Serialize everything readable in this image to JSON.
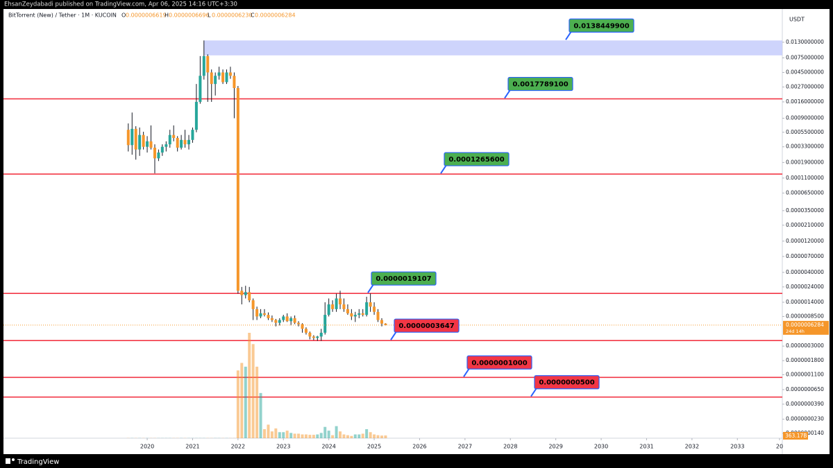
{
  "publisher": "EhsanZeydabadi published on TradingView.com, Apr 06, 2025 14:16 UTC+3:30",
  "footer": "TradingView",
  "chart_data": {
    "type": "candlestick",
    "symbol": "BitTorrent (New) / Tether · 1M · KUCOIN",
    "ohlc": [
      {
        "key": "O",
        "value": "0.0000006619"
      },
      {
        "key": "H",
        "value": "0.0000006696"
      },
      {
        "key": "L",
        "value": "0.0000006230"
      },
      {
        "key": "C",
        "value": "0.0000006284"
      }
    ],
    "y_unit": "USDT",
    "log_scale": true,
    "up_color": "#26a69a",
    "down_color": "#f5962a",
    "ylim": [
      1.18e-08,
      0.037
    ],
    "yticks": [
      {
        "value": 0.013,
        "label": "0.0130000000"
      },
      {
        "value": 0.0075,
        "label": "0.0075000000"
      },
      {
        "value": 0.0045,
        "label": "0.0045000000"
      },
      {
        "value": 0.0027,
        "label": "0.0027000000"
      },
      {
        "value": 0.0016,
        "label": "0.0016000000"
      },
      {
        "value": 0.0009,
        "label": "0.0009000000"
      },
      {
        "value": 0.00055,
        "label": "0.0005500000"
      },
      {
        "value": 0.00033,
        "label": "0.0003300000"
      },
      {
        "value": 0.00019,
        "label": "0.0001900000"
      },
      {
        "value": 0.00011,
        "label": "0.0001100000"
      },
      {
        "value": 6.5e-05,
        "label": "0.0000650000"
      },
      {
        "value": 3.5e-05,
        "label": "0.0000350000"
      },
      {
        "value": 2.1e-05,
        "label": "0.0000210000"
      },
      {
        "value": 1.2e-05,
        "label": "0.0000120000"
      },
      {
        "value": 7e-06,
        "label": "0.0000070000"
      },
      {
        "value": 4e-06,
        "label": "0.0000040000"
      },
      {
        "value": 2.4e-06,
        "label": "0.0000024000"
      },
      {
        "value": 1.4e-06,
        "label": "0.0000014000"
      },
      {
        "value": 8.5e-07,
        "label": "0.0000008500"
      },
      {
        "value": 3e-07,
        "label": "0.0000003000"
      },
      {
        "value": 1.8e-07,
        "label": "0.0000001800"
      },
      {
        "value": 1.1e-07,
        "label": "0.0000001100"
      },
      {
        "value": 6.5e-08,
        "label": "0.0000000650"
      },
      {
        "value": 3.9e-08,
        "label": "0.0000000390"
      },
      {
        "value": 2.3e-08,
        "label": "0.0000000230"
      },
      {
        "value": 1.4e-08,
        "label": "0.0000000140"
      }
    ],
    "xlim": [
      2016.834,
      2033.99
    ],
    "xticks": [
      2020,
      2021,
      2022,
      2023,
      2024,
      2025,
      2026,
      2027,
      2028,
      2029,
      2030,
      2031,
      2032,
      2033,
      {
        "value": 2034,
        "label": "20"
      }
    ],
    "zone": {
      "low": 0.0082,
      "high": 0.01384499,
      "color": "#c5cdfc"
    },
    "levels": [
      {
        "value": 0.01384499,
        "label": "0.0138449900",
        "color": "#4caf50",
        "line": false
      },
      {
        "value": 0.00177891,
        "label": "0.0017789100",
        "color": "#4caf50",
        "line": true
      },
      {
        "value": 0.00012656,
        "label": "0.0001265600",
        "color": "#4caf50",
        "line": true
      },
      {
        "value": 1.9107e-06,
        "label": "0.0000019107",
        "color": "#4caf50",
        "line": true
      },
      {
        "value": 3.647e-07,
        "label": "0.0000003647",
        "color": "#f23645",
        "line": true
      },
      {
        "value": 1e-07,
        "label": "0.0000001000",
        "color": "#f23645",
        "line": true
      },
      {
        "value": 5e-08,
        "label": "0.0000000500",
        "color": "#f23645",
        "line": true
      }
    ],
    "level_line_color": "#f23645",
    "last_price": {
      "value": 6.284e-07,
      "label": "0.0000006284",
      "countdown": "24d 14h"
    },
    "last_volume_label": "363.17B",
    "candles": {
      "x": [
        2019.583,
        2019.667,
        2019.75,
        2019.833,
        2019.917,
        2020.0,
        2020.083,
        2020.167,
        2020.25,
        2020.333,
        2020.417,
        2020.5,
        2020.583,
        2020.667,
        2020.75,
        2020.833,
        2020.917,
        2021.0,
        2021.083,
        2021.167,
        2021.25,
        2021.333,
        2021.417,
        2021.5,
        2021.583,
        2021.667,
        2021.75,
        2021.833,
        2021.917,
        2022.0,
        2022.083,
        2022.167,
        2022.25,
        2022.333,
        2022.417,
        2022.5,
        2022.583,
        2022.667,
        2022.75,
        2022.833,
        2022.917,
        2023.0,
        2023.083,
        2023.167,
        2023.25,
        2023.333,
        2023.417,
        2023.5,
        2023.583,
        2023.667,
        2023.75,
        2023.833,
        2023.917,
        2024.0,
        2024.083,
        2024.167,
        2024.25,
        2024.333,
        2024.417,
        2024.5,
        2024.583,
        2024.667,
        2024.75,
        2024.833,
        2024.917,
        2025.0,
        2025.083,
        2025.167,
        2025.25
      ],
      "open": [
        0.0006,
        0.00035,
        0.00062,
        0.0003,
        0.0005,
        0.00033,
        0.0004,
        0.00032,
        0.00022,
        0.00027,
        0.00033,
        0.00036,
        0.0005,
        0.00045,
        0.00032,
        0.00042,
        0.00036,
        0.00042,
        0.0006,
        0.0016,
        0.004,
        0.008,
        0.0045,
        0.003,
        0.004,
        0.0045,
        0.0032,
        0.0045,
        0.004,
        0.0026,
        2.1e-06,
        1.8e-06,
        2e-06,
        1.5e-06,
        1.1e-06,
        8.5e-07,
        9.5e-07,
        9e-07,
        8e-07,
        7.5e-07,
        6.8e-07,
        7.5e-07,
        8.5e-07,
        7.2e-07,
        8e-07,
        6.8e-07,
        6.5e-07,
        5.5e-07,
        4.8e-07,
        4.2e-07,
        4e-07,
        4.2e-07,
        4.8e-07,
        9e-07,
        1.3e-06,
        1.1e-06,
        1.6e-06,
        1.3e-06,
        1.1e-06,
        9.5e-07,
        8.5e-07,
        9e-07,
        9.5e-07,
        9e-07,
        1.4e-06,
        1.2e-06,
        1e-06,
        7.5e-07,
        6.619e-07
      ],
      "high": [
        0.00075,
        0.0011,
        0.00068,
        0.00065,
        0.00056,
        0.00048,
        0.0007,
        0.00036,
        0.0003,
        0.00036,
        0.0004,
        0.0006,
        0.0007,
        0.00048,
        0.0005,
        0.0006,
        0.0005,
        0.00065,
        0.003,
        0.008,
        0.01384499,
        0.0085,
        0.005,
        0.0045,
        0.0055,
        0.005,
        0.005,
        0.0055,
        0.0045,
        0.0028,
        2.4e-06,
        2.5e-06,
        2.4e-06,
        1.6e-06,
        1.2e-06,
        1.1e-06,
        1.1e-06,
        9.8e-07,
        8.8e-07,
        7.8e-07,
        8e-07,
        9e-07,
        9.5e-07,
        8.5e-07,
        8.8e-07,
        7.2e-07,
        6.7e-07,
        5.8e-07,
        5e-07,
        4.4e-07,
        4.3e-07,
        5.5e-07,
        1.4e-06,
        1.6e-06,
        1.5e-06,
        1.9e-06,
        2.1e-06,
        1.6e-06,
        1.3e-06,
        1.1e-06,
        1e-06,
        1.1e-06,
        1.1e-06,
        1.7e-06,
        1.9107e-06,
        1.4e-06,
        1.1e-06,
        8e-07,
        6.696e-07
      ],
      "low": [
        0.00028,
        0.00025,
        0.00021,
        0.00024,
        0.0003,
        0.00027,
        0.0003,
        0.00013,
        0.0002,
        0.00024,
        0.00028,
        0.00032,
        0.0004,
        0.00028,
        0.0003,
        0.00032,
        0.0003,
        0.00038,
        0.00055,
        0.0015,
        0.0035,
        0.0016,
        0.0016,
        0.002,
        0.0035,
        0.003,
        0.003,
        0.0036,
        0.0009,
        1.9e-06,
        1.3e-06,
        1.6e-06,
        1.4e-06,
        7.5e-07,
        7.5e-07,
        8e-07,
        8.5e-07,
        7.5e-07,
        7e-07,
        6e-07,
        6.2e-07,
        7e-07,
        7e-07,
        6.2e-07,
        6.5e-07,
        6e-07,
        4.8e-07,
        4.5e-07,
        3.8e-07,
        3.7e-07,
        3.6e-07,
        3.6e-07,
        4.5e-07,
        8.5e-07,
        1e-06,
        1e-06,
        1.1e-06,
        1e-06,
        9e-07,
        7.5e-07,
        7e-07,
        8e-07,
        8.5e-07,
        8.5e-07,
        1e-06,
        9e-07,
        7e-07,
        6e-07,
        6.23e-07
      ],
      "close": [
        0.00035,
        0.00062,
        0.0003,
        0.0005,
        0.00033,
        0.0004,
        0.00032,
        0.00022,
        0.00027,
        0.00033,
        0.00036,
        0.0005,
        0.00045,
        0.00032,
        0.00042,
        0.00036,
        0.00042,
        0.0006,
        0.0016,
        0.004,
        0.008,
        0.0045,
        0.003,
        0.004,
        0.0045,
        0.0032,
        0.0045,
        0.004,
        0.0026,
        2.1e-06,
        1.8e-06,
        2e-06,
        1.5e-06,
        1.1e-06,
        8.5e-07,
        9.5e-07,
        9e-07,
        8e-07,
        7.5e-07,
        6.8e-07,
        7.5e-07,
        8.5e-07,
        7.2e-07,
        8e-07,
        6.8e-07,
        6.5e-07,
        5.5e-07,
        4.8e-07,
        4.2e-07,
        4e-07,
        4.2e-07,
        4.8e-07,
        9e-07,
        1.3e-06,
        1.1e-06,
        1.6e-06,
        1.3e-06,
        1.1e-06,
        9.5e-07,
        8.5e-07,
        9e-07,
        9.5e-07,
        9e-07,
        1.4e-06,
        1.2e-06,
        1e-06,
        7.5e-07,
        6.6e-07,
        6.284e-07
      ],
      "volume": [
        20,
        20,
        20,
        20,
        20,
        20,
        20,
        20,
        20,
        20,
        20,
        20,
        20,
        20,
        20,
        20,
        20,
        20,
        20,
        20,
        20,
        20,
        20,
        20,
        20,
        20,
        20,
        20,
        20,
        9000,
        10000,
        9500,
        14000,
        12500,
        9500,
        6000,
        1200,
        1800,
        900,
        1300,
        800,
        800,
        1000,
        700,
        600,
        600,
        500,
        500,
        450,
        450,
        500,
        700,
        1500,
        1000,
        400,
        1600,
        900,
        500,
        400,
        300,
        500,
        500,
        600,
        1200,
        800,
        500,
        400,
        350,
        363.17
      ]
    }
  }
}
